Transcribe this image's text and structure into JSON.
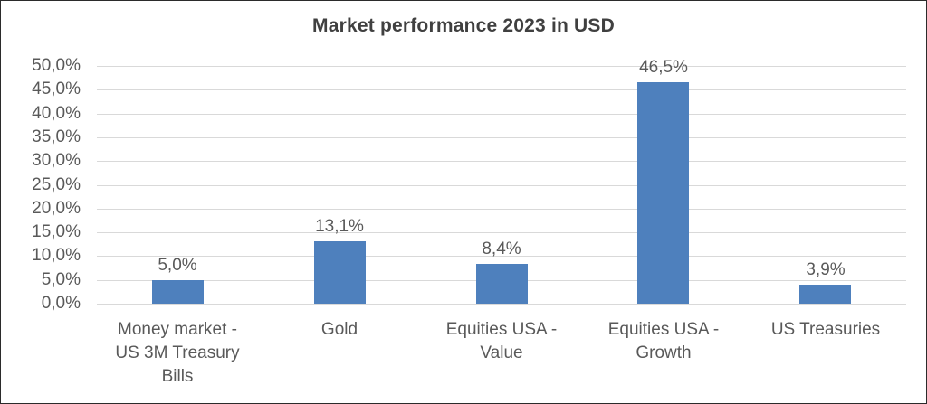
{
  "chart_data": {
    "type": "bar",
    "title": "Market performance 2023 in USD",
    "categories": [
      "Money market - US 3M Treasury Bills",
      "Gold",
      "Equities USA - Value",
      "Equities USA - Growth",
      "US Treasuries"
    ],
    "values": [
      5.0,
      13.1,
      8.4,
      46.5,
      3.9
    ],
    "value_labels": [
      "5,0%",
      "13,1%",
      "8,4%",
      "46,5%",
      "3,9%"
    ],
    "y_ticks": [
      "50,0%",
      "45,0%",
      "40,0%",
      "35,0%",
      "30,0%",
      "25,0%",
      "20,0%",
      "15,0%",
      "10,0%",
      "5,0%",
      "0,0%"
    ],
    "ylim": [
      0,
      50
    ],
    "xlabel": "",
    "ylabel": "",
    "grid": true,
    "legend": "none",
    "decimal_separator": ",",
    "colors": {
      "bar": "#4E80BD",
      "title_text": "#404040",
      "axis_text": "#595959",
      "gridline": "#D9D9D9",
      "background": "#FFFFFF",
      "frame_border": "#2B2B2B"
    }
  }
}
